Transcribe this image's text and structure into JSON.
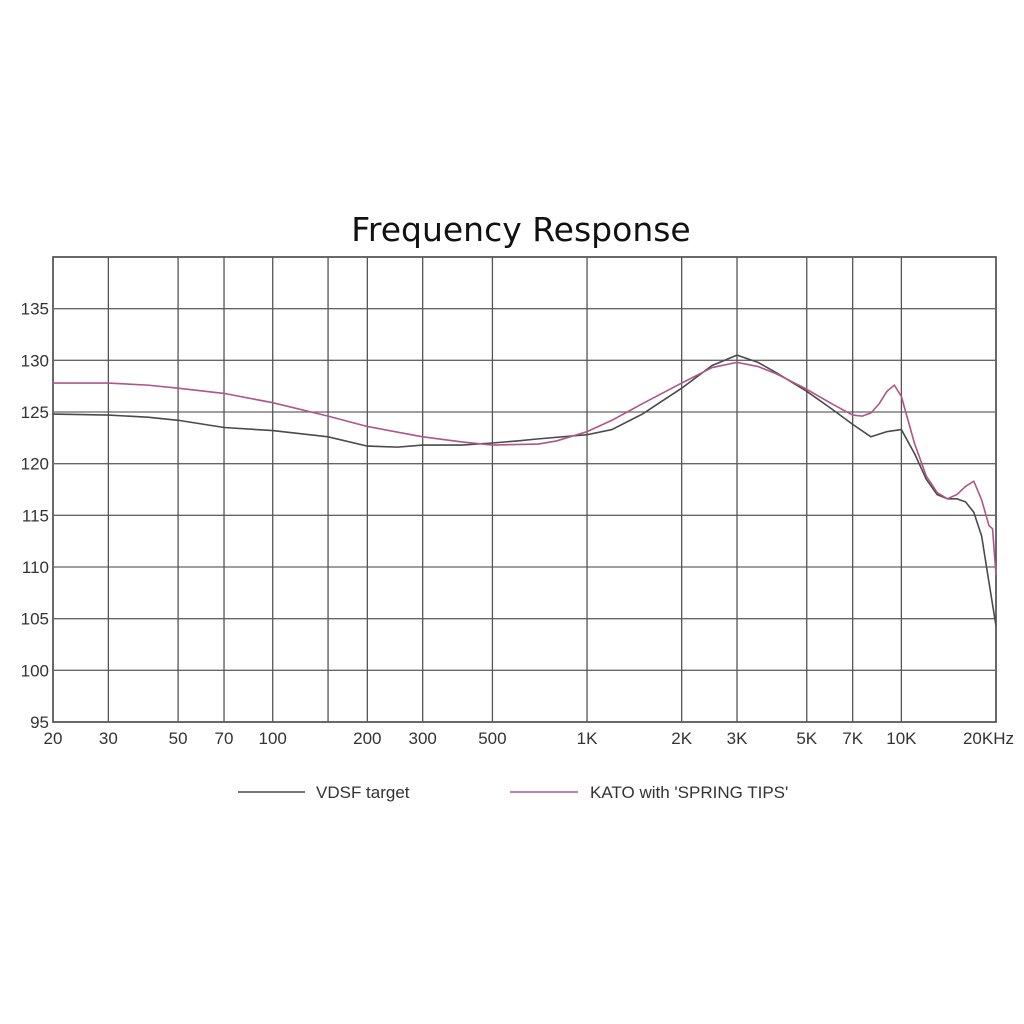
{
  "chart_data": {
    "type": "line",
    "title": "Frequency Response",
    "xlabel": "",
    "ylabel": "",
    "x_scale": "log",
    "xlim": [
      20,
      20000
    ],
    "ylim": [
      95,
      140
    ],
    "grid": true,
    "legend_position": "bottom",
    "x_ticks": [
      {
        "value": 20,
        "label": "20"
      },
      {
        "value": 30,
        "label": "30"
      },
      {
        "value": 50,
        "label": "50"
      },
      {
        "value": 70,
        "label": "70"
      },
      {
        "value": 100,
        "label": "100"
      },
      {
        "value": 200,
        "label": "200"
      },
      {
        "value": 300,
        "label": "300"
      },
      {
        "value": 500,
        "label": "500"
      },
      {
        "value": 1000,
        "label": "1K"
      },
      {
        "value": 2000,
        "label": "2K"
      },
      {
        "value": 3000,
        "label": "3K"
      },
      {
        "value": 5000,
        "label": "5K"
      },
      {
        "value": 7000,
        "label": "7K"
      },
      {
        "value": 10000,
        "label": "10K"
      },
      {
        "value": 20000,
        "label": "20KHz"
      }
    ],
    "x_grid_extra": [
      150
    ],
    "y_ticks": [
      {
        "value": 95,
        "label": "95"
      },
      {
        "value": 100,
        "label": "100"
      },
      {
        "value": 105,
        "label": "105"
      },
      {
        "value": 110,
        "label": "110"
      },
      {
        "value": 115,
        "label": "115"
      },
      {
        "value": 120,
        "label": "120"
      },
      {
        "value": 125,
        "label": "125"
      },
      {
        "value": 130,
        "label": "130"
      },
      {
        "value": 135,
        "label": "135"
      }
    ],
    "series": [
      {
        "name": "VDSF target",
        "color": "#4a4a4a",
        "points": [
          [
            20,
            124.8
          ],
          [
            30,
            124.7
          ],
          [
            40,
            124.5
          ],
          [
            50,
            124.2
          ],
          [
            70,
            123.5
          ],
          [
            100,
            123.2
          ],
          [
            150,
            122.6
          ],
          [
            200,
            121.7
          ],
          [
            250,
            121.6
          ],
          [
            300,
            121.8
          ],
          [
            400,
            121.8
          ],
          [
            500,
            122.0
          ],
          [
            600,
            122.2
          ],
          [
            700,
            122.4
          ],
          [
            1000,
            122.8
          ],
          [
            1200,
            123.3
          ],
          [
            1500,
            124.8
          ],
          [
            2000,
            127.3
          ],
          [
            2500,
            129.5
          ],
          [
            3000,
            130.5
          ],
          [
            3500,
            129.8
          ],
          [
            4000,
            128.8
          ],
          [
            5000,
            127.0
          ],
          [
            6000,
            125.3
          ],
          [
            7000,
            123.8
          ],
          [
            8000,
            122.6
          ],
          [
            9000,
            123.1
          ],
          [
            10000,
            123.3
          ],
          [
            11000,
            121.0
          ],
          [
            12000,
            118.5
          ],
          [
            13000,
            117.0
          ],
          [
            14000,
            116.6
          ],
          [
            15000,
            116.6
          ],
          [
            16000,
            116.3
          ],
          [
            17000,
            115.3
          ],
          [
            18000,
            113.0
          ],
          [
            19000,
            108.5
          ],
          [
            20000,
            104.3
          ]
        ]
      },
      {
        "name": "KATO with 'SPRING TIPS'",
        "color": "#b05585",
        "points": [
          [
            20,
            127.8
          ],
          [
            30,
            127.8
          ],
          [
            40,
            127.6
          ],
          [
            50,
            127.3
          ],
          [
            70,
            126.8
          ],
          [
            100,
            125.9
          ],
          [
            150,
            124.6
          ],
          [
            200,
            123.6
          ],
          [
            300,
            122.6
          ],
          [
            400,
            122.1
          ],
          [
            500,
            121.8
          ],
          [
            700,
            121.9
          ],
          [
            800,
            122.2
          ],
          [
            1000,
            123.1
          ],
          [
            1200,
            124.2
          ],
          [
            1500,
            125.8
          ],
          [
            2000,
            127.8
          ],
          [
            2500,
            129.3
          ],
          [
            3000,
            129.8
          ],
          [
            3500,
            129.4
          ],
          [
            4000,
            128.7
          ],
          [
            5000,
            127.2
          ],
          [
            6000,
            125.8
          ],
          [
            7000,
            124.7
          ],
          [
            7500,
            124.6
          ],
          [
            8000,
            124.9
          ],
          [
            8500,
            125.8
          ],
          [
            9000,
            127.0
          ],
          [
            9500,
            127.6
          ],
          [
            10000,
            126.5
          ],
          [
            11000,
            122.0
          ],
          [
            12000,
            118.8
          ],
          [
            13000,
            117.2
          ],
          [
            14000,
            116.6
          ],
          [
            15000,
            117.0
          ],
          [
            16000,
            117.8
          ],
          [
            17000,
            118.3
          ],
          [
            18000,
            116.5
          ],
          [
            19000,
            114.0
          ],
          [
            19500,
            113.7
          ],
          [
            20000,
            109.3
          ]
        ]
      }
    ]
  }
}
